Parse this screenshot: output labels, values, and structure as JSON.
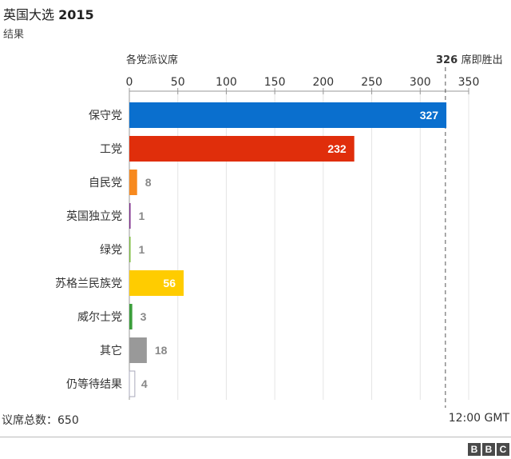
{
  "header": {
    "title_cn": "英国大选",
    "title_year": "2015",
    "subtitle": "结果"
  },
  "chart_data": {
    "type": "bar",
    "orientation": "horizontal",
    "axis_label": "各党派议席",
    "xlim": [
      0,
      350
    ],
    "ticks": [
      0,
      50,
      100,
      150,
      200,
      250,
      300,
      350
    ],
    "threshold": {
      "value": 326,
      "label_value": "326",
      "label_text": "席即胜出"
    },
    "categories": [
      "保守党",
      "工党",
      "自民党",
      "英国独立党",
      "绿党",
      "苏格兰民族党",
      "威尔士党",
      "其它",
      "仍等待结果"
    ],
    "values": [
      327,
      232,
      8,
      1,
      1,
      56,
      3,
      18,
      4
    ],
    "colors": [
      "#0a6fce",
      "#e02e0b",
      "#f7891e",
      "#7b2a8a",
      "#7dbb3f",
      "#ffcc00",
      "#3b9e3b",
      "#999999",
      "#ffffff"
    ],
    "grid": true,
    "legend": "none"
  },
  "footer": {
    "total_label": "议席总数：650",
    "time": "12:00 GMT"
  },
  "logo": {
    "letters": [
      "B",
      "B",
      "C"
    ]
  }
}
